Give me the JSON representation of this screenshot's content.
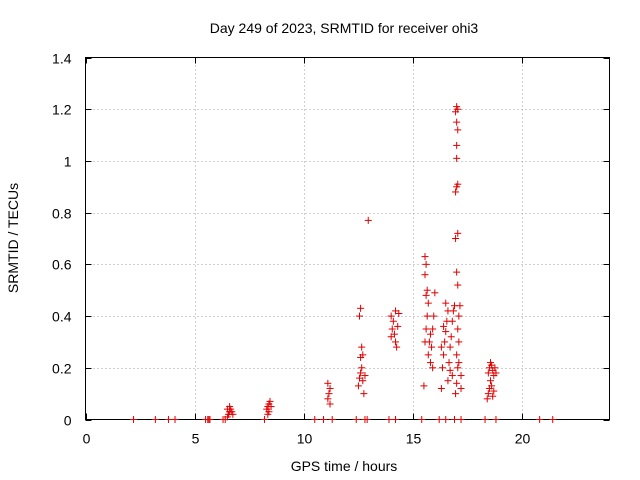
{
  "chart_data": {
    "type": "scatter",
    "title": "Day 249 of 2023, SRMTID for receiver ohi3",
    "xlabel": "GPS time / hours",
    "ylabel": "SRMTID / TECUs",
    "xlim": [
      0,
      24
    ],
    "ylim": [
      0,
      1.4
    ],
    "xticks": [
      0,
      5,
      10,
      15,
      20
    ],
    "xtick_labels": [
      "0",
      "5",
      "10",
      "15",
      "20"
    ],
    "yticks": [
      0,
      0.2,
      0.4,
      0.6,
      0.8,
      1,
      1.2,
      1.4
    ],
    "ytick_labels": [
      "0",
      "0.2",
      "0.4",
      "0.6",
      "0.8",
      "1",
      "1.2",
      "1.4"
    ],
    "grid": true,
    "marker": "+",
    "color": "#e00000",
    "series": [
      {
        "name": "SRMTID",
        "points": [
          [
            2.2,
            0
          ],
          [
            3.2,
            0
          ],
          [
            3.8,
            0
          ],
          [
            4.1,
            0
          ],
          [
            5.5,
            0
          ],
          [
            5.6,
            0
          ],
          [
            5.7,
            0
          ],
          [
            5.65,
            0
          ],
          [
            6.3,
            0
          ],
          [
            6.4,
            0
          ],
          [
            6.5,
            0.01
          ],
          [
            6.55,
            0.02
          ],
          [
            6.6,
            0.03
          ],
          [
            6.65,
            0.04
          ],
          [
            6.7,
            0.03
          ],
          [
            6.75,
            0.02
          ],
          [
            6.6,
            0.05
          ],
          [
            6.5,
            0.04
          ],
          [
            8.2,
            0
          ],
          [
            8.3,
            0.04
          ],
          [
            8.35,
            0.05
          ],
          [
            8.4,
            0.06
          ],
          [
            8.45,
            0.07
          ],
          [
            8.5,
            0.05
          ],
          [
            8.4,
            0.03
          ],
          [
            8.35,
            0.02
          ],
          [
            10.5,
            0
          ],
          [
            10.9,
            0
          ],
          [
            11.1,
            0.08
          ],
          [
            11.15,
            0.1
          ],
          [
            11.2,
            0.12
          ],
          [
            11.1,
            0.14
          ],
          [
            11.2,
            0.06
          ],
          [
            11.3,
            0
          ],
          [
            12.4,
            0
          ],
          [
            12.5,
            0.13
          ],
          [
            12.55,
            0.16
          ],
          [
            12.6,
            0.18
          ],
          [
            12.65,
            0.2
          ],
          [
            12.6,
            0.24
          ],
          [
            12.7,
            0.25
          ],
          [
            12.65,
            0.28
          ],
          [
            12.55,
            0.4
          ],
          [
            12.6,
            0.43
          ],
          [
            12.7,
            0.15
          ],
          [
            12.75,
            0.1
          ],
          [
            12.8,
            0.17
          ],
          [
            12.8,
            0
          ],
          [
            12.9,
            0
          ],
          [
            12.95,
            0.77
          ],
          [
            13.9,
            0
          ],
          [
            14.0,
            0.32
          ],
          [
            14.05,
            0.35
          ],
          [
            14.1,
            0.38
          ],
          [
            14.0,
            0.4
          ],
          [
            14.15,
            0.33
          ],
          [
            14.2,
            0.3
          ],
          [
            14.25,
            0.28
          ],
          [
            14.3,
            0.36
          ],
          [
            14.35,
            0.41
          ],
          [
            14.2,
            0.42
          ],
          [
            14.2,
            0
          ],
          [
            15.4,
            0
          ],
          [
            15.5,
            0.13
          ],
          [
            15.55,
            0.3
          ],
          [
            15.6,
            0.35
          ],
          [
            15.65,
            0.4
          ],
          [
            15.7,
            0.45
          ],
          [
            15.6,
            0.48
          ],
          [
            15.65,
            0.5
          ],
          [
            15.55,
            0.56
          ],
          [
            15.6,
            0.6
          ],
          [
            15.55,
            0.63
          ],
          [
            15.7,
            0.25
          ],
          [
            15.75,
            0.3
          ],
          [
            15.8,
            0.33
          ],
          [
            15.85,
            0.28
          ],
          [
            15.9,
            0.35
          ],
          [
            15.95,
            0.4
          ],
          [
            16.0,
            0.49
          ],
          [
            15.8,
            0.22
          ],
          [
            15.9,
            0.2
          ],
          [
            16.2,
            0
          ],
          [
            16.3,
            0.12
          ],
          [
            16.35,
            0.2
          ],
          [
            16.4,
            0.25
          ],
          [
            16.45,
            0.3
          ],
          [
            16.5,
            0.34
          ],
          [
            16.55,
            0.38
          ],
          [
            16.6,
            0.42
          ],
          [
            16.5,
            0.45
          ],
          [
            16.4,
            0.36
          ],
          [
            16.3,
            0.28
          ],
          [
            16.5,
            0
          ],
          [
            16.6,
            0.15
          ],
          [
            16.65,
            0.22
          ],
          [
            16.7,
            0.28
          ],
          [
            16.75,
            0.32
          ],
          [
            16.8,
            0.38
          ],
          [
            16.85,
            0.42
          ],
          [
            16.9,
            0.44
          ],
          [
            16.7,
            0.19
          ],
          [
            16.8,
            0.17
          ],
          [
            16.95,
            0.1
          ],
          [
            17.0,
            0.14
          ],
          [
            17.05,
            0.2
          ],
          [
            17.0,
            0.25
          ],
          [
            17.1,
            0.3
          ],
          [
            17.05,
            0.35
          ],
          [
            17.1,
            0.4
          ],
          [
            17.15,
            0.44
          ],
          [
            17.0,
            0.57
          ],
          [
            17.05,
            0.52
          ],
          [
            16.95,
            0.7
          ],
          [
            17.05,
            0.72
          ],
          [
            16.95,
            0.88
          ],
          [
            17.0,
            0.9
          ],
          [
            17.05,
            0.91
          ],
          [
            17.0,
            1.01
          ],
          [
            17.0,
            1.06
          ],
          [
            17.05,
            1.12
          ],
          [
            17.0,
            1.15
          ],
          [
            16.95,
            1.19
          ],
          [
            17.05,
            1.2
          ],
          [
            17.0,
            1.21
          ],
          [
            17.1,
            0.22
          ],
          [
            17.2,
            0.17
          ],
          [
            17.2,
            0.12
          ],
          [
            16.9,
            0
          ],
          [
            17.2,
            0
          ],
          [
            18.3,
            0
          ],
          [
            18.4,
            0.08
          ],
          [
            18.45,
            0.1
          ],
          [
            18.5,
            0.12
          ],
          [
            18.55,
            0.15
          ],
          [
            18.45,
            0.18
          ],
          [
            18.5,
            0.2
          ],
          [
            18.55,
            0.22
          ],
          [
            18.6,
            0.21
          ],
          [
            18.65,
            0.19
          ],
          [
            18.7,
            0.17
          ],
          [
            18.6,
            0.13
          ],
          [
            18.65,
            0.09
          ],
          [
            18.7,
            0.11
          ],
          [
            18.75,
            0.2
          ],
          [
            18.8,
            0.18
          ],
          [
            18.8,
            0
          ],
          [
            20.8,
            0
          ],
          [
            21.4,
            0
          ]
        ]
      }
    ]
  }
}
